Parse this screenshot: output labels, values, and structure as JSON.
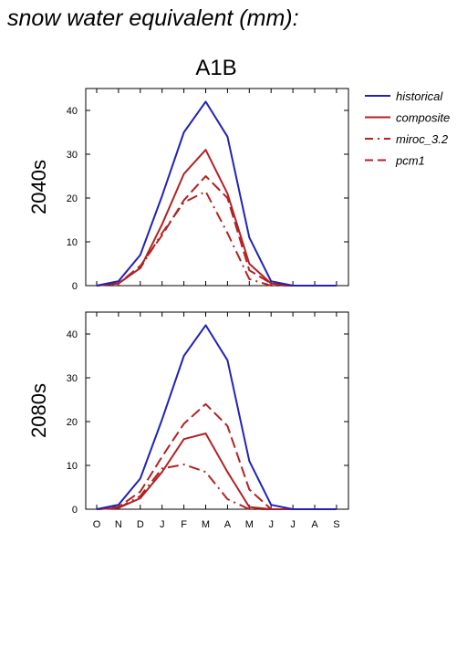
{
  "page_title": "snow water equivalent (mm):",
  "scenario_label": "A1B",
  "colors": {
    "historical": "#2222b4",
    "projection": "#b22222",
    "axis": "#000000"
  },
  "chart_data": [
    {
      "type": "line",
      "panel_label": "2040s",
      "categories": [
        "O",
        "N",
        "D",
        "J",
        "F",
        "M",
        "A",
        "M",
        "J",
        "J",
        "A",
        "S"
      ],
      "ylim": [
        0,
        45
      ],
      "yticks": [
        0,
        10,
        20,
        30,
        40
      ],
      "show_x_tick_labels": false,
      "series": [
        {
          "name": "historical",
          "color": "#2222b4",
          "dash": "solid",
          "values": [
            0,
            1,
            7,
            20.5,
            35,
            42,
            34,
            11,
            1,
            0,
            0,
            0
          ]
        },
        {
          "name": "composite",
          "color": "#b22222",
          "dash": "solid",
          "values": [
            0,
            0.5,
            4,
            14,
            25.5,
            31,
            21,
            5,
            0.5,
            0,
            0,
            0
          ]
        },
        {
          "name": "miroc_3.2",
          "color": "#b22222",
          "dash": "dashdot",
          "values": [
            0,
            0.5,
            4,
            12,
            19,
            21.5,
            12,
            1.5,
            0,
            0,
            0,
            0
          ]
        },
        {
          "name": "pcm1",
          "color": "#b22222",
          "dash": "dash",
          "values": [
            0,
            0.5,
            4.5,
            11.5,
            19.5,
            25,
            20,
            3.5,
            0.5,
            0,
            0,
            0
          ]
        }
      ]
    },
    {
      "type": "line",
      "panel_label": "2080s",
      "categories": [
        "O",
        "N",
        "D",
        "J",
        "F",
        "M",
        "A",
        "M",
        "J",
        "J",
        "A",
        "S"
      ],
      "ylim": [
        0,
        45
      ],
      "yticks": [
        0,
        10,
        20,
        30,
        40
      ],
      "show_x_tick_labels": true,
      "series": [
        {
          "name": "historical",
          "color": "#2222b4",
          "dash": "solid",
          "values": [
            0,
            1,
            7,
            20.5,
            35,
            42,
            34,
            11,
            1,
            0,
            0,
            0
          ]
        },
        {
          "name": "composite",
          "color": "#b22222",
          "dash": "solid",
          "values": [
            0,
            0.3,
            2.5,
            8.5,
            16,
            17.3,
            8.5,
            0.5,
            0,
            0,
            0,
            0
          ]
        },
        {
          "name": "miroc_3.2",
          "color": "#b22222",
          "dash": "dashdot",
          "values": [
            0,
            0.3,
            3,
            9.3,
            10.2,
            8.5,
            2.3,
            0,
            0,
            0,
            0,
            0
          ]
        },
        {
          "name": "pcm1",
          "color": "#b22222",
          "dash": "dash",
          "values": [
            0,
            0.5,
            4,
            12,
            19.5,
            24,
            19,
            4.5,
            0,
            0,
            0,
            0
          ]
        }
      ]
    }
  ],
  "legend": [
    {
      "label": "historical",
      "color": "#2222b4",
      "dash": "solid"
    },
    {
      "label": "composite",
      "color": "#b22222",
      "dash": "solid"
    },
    {
      "label": "miroc_3.2",
      "color": "#b22222",
      "dash": "dashdot"
    },
    {
      "label": "pcm1",
      "color": "#b22222",
      "dash": "dash"
    }
  ]
}
